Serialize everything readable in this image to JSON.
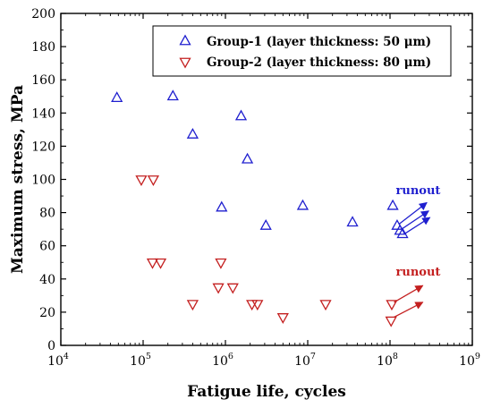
{
  "chart_data": {
    "type": "scatter",
    "xscale": "log",
    "xlim": [
      10000,
      1000000000
    ],
    "ylim": [
      0,
      200
    ],
    "xlabel": "Fatigue life, cycles",
    "ylabel": "Maximum stress, MPa",
    "yticks": [
      0,
      20,
      40,
      60,
      80,
      100,
      120,
      140,
      160,
      180,
      200
    ],
    "xtick_base": "10",
    "xtick_exponents": [
      "4",
      "5",
      "6",
      "7",
      "8",
      "9"
    ],
    "legend_position": "top-right",
    "series": [
      {
        "name": "Group-1 (layer thickness: 50 μm)",
        "marker": "triangle-up",
        "color": "#1f1fcf",
        "points": [
          [
            48000,
            149
          ],
          [
            230000,
            150
          ],
          [
            400000,
            127
          ],
          [
            900000,
            83
          ],
          [
            1550000,
            138
          ],
          [
            1850000,
            112
          ],
          [
            3100000,
            72
          ],
          [
            8700000,
            84
          ],
          [
            35000000,
            74
          ],
          [
            108000000,
            84
          ],
          [
            122000000,
            72
          ],
          [
            132000000,
            69
          ],
          [
            142000000,
            67
          ]
        ]
      },
      {
        "name": "Group-2 (layer thickness: 80 μm)",
        "marker": "triangle-down",
        "color": "#c42020",
        "points": [
          [
            95000,
            100
          ],
          [
            133000,
            100
          ],
          [
            130000,
            50
          ],
          [
            163000,
            50
          ],
          [
            400000,
            25
          ],
          [
            820000,
            35
          ],
          [
            880000,
            50
          ],
          [
            1230000,
            35
          ],
          [
            2100000,
            25
          ],
          [
            2450000,
            25
          ],
          [
            5000000,
            17
          ],
          [
            16500000,
            25
          ],
          [
            105000000,
            25
          ],
          [
            103000000,
            15
          ]
        ]
      }
    ],
    "annotations": [
      {
        "text": "runout",
        "color": "#1f1fcf",
        "label_at": [
          220000000,
          91
        ],
        "arrows": [
          [
            [
              128000000,
              73
            ],
            [
              280000000,
              86
            ]
          ],
          [
            [
              138000000,
              70
            ],
            [
              295000000,
              81
            ]
          ],
          [
            [
              148000000,
              67
            ],
            [
              305000000,
              77
            ]
          ]
        ]
      },
      {
        "text": "runout",
        "color": "#c42020",
        "label_at": [
          220000000,
          42
        ],
        "arrows": [
          [
            [
              112000000,
              26
            ],
            [
              250000000,
              36
            ]
          ],
          [
            [
              112000000,
              17
            ],
            [
              250000000,
              26
            ]
          ]
        ]
      }
    ]
  }
}
